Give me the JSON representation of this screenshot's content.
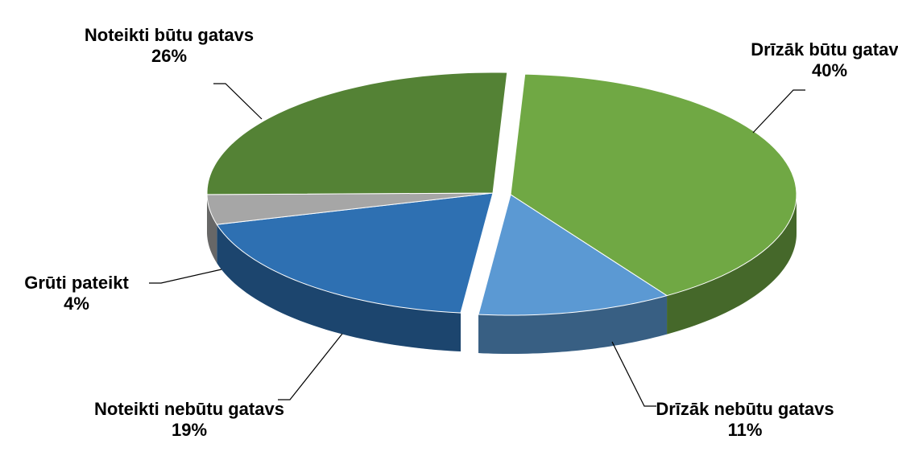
{
  "chart_data": {
    "type": "pie",
    "categories": [
      "Drīzāk būtu gatavs",
      "Drīzāk nebūtu gatavs",
      "Noteikti nebūtu gatavs",
      "Grūti pateikt",
      "Noteikti būtu gatavs"
    ],
    "values": [
      40,
      11,
      19,
      4,
      26
    ],
    "value_labels": [
      "40%",
      "11%",
      "19%",
      "4%",
      "26%"
    ],
    "colors": [
      "#70a844",
      "#5b99d3",
      "#2e70b2",
      "#a6a6a6",
      "#548235"
    ]
  }
}
